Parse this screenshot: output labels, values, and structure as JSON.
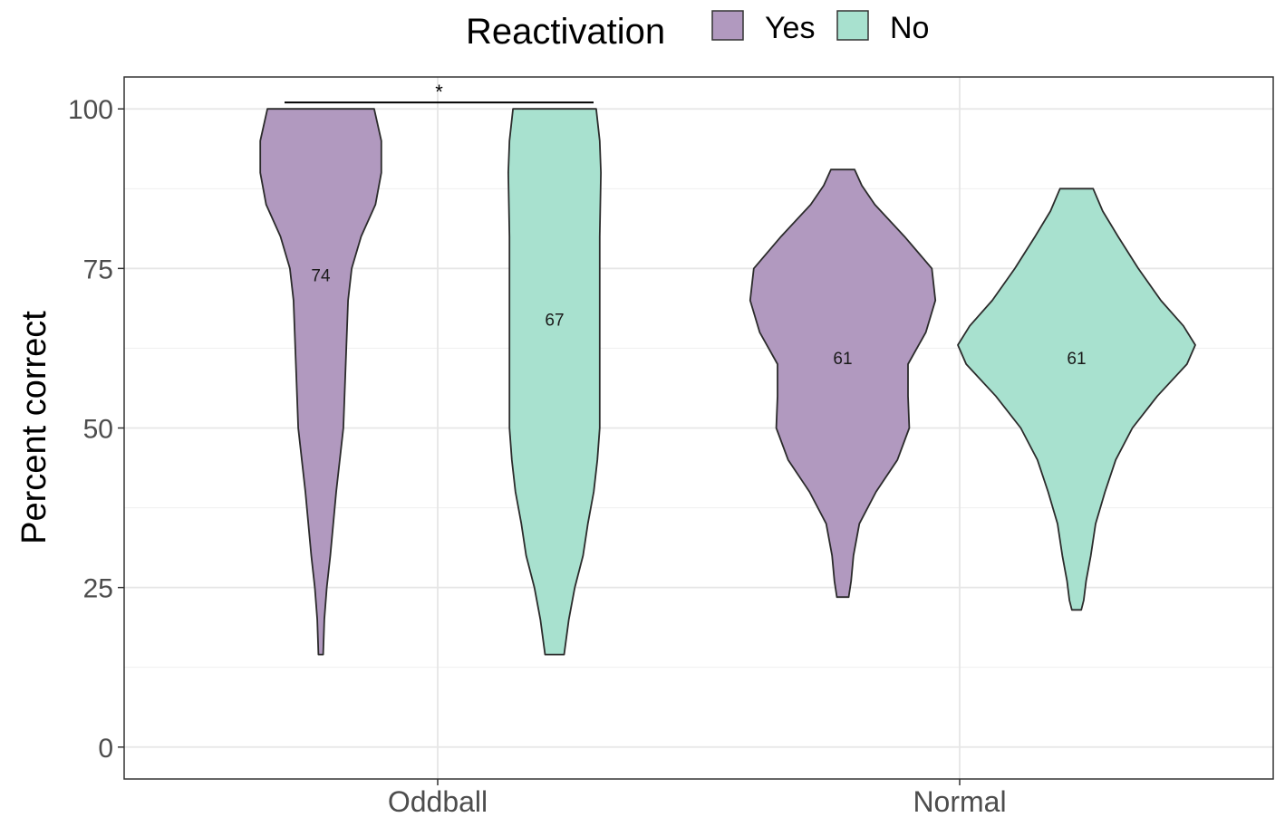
{
  "chart_data": {
    "type": "violin",
    "title": "",
    "xlabel": "",
    "ylabel": "Percent correct",
    "ylim": [
      -5,
      105
    ],
    "y_ticks": [
      0,
      25,
      50,
      75,
      100
    ],
    "categories": [
      "Oddball",
      "Normal"
    ],
    "legend": {
      "title": "Reactivation",
      "position": "top",
      "entries": [
        {
          "name": "Yes",
          "color": "#b199bf"
        },
        {
          "name": "No",
          "color": "#a8e1cf"
        }
      ]
    },
    "series": [
      {
        "name": "Yes",
        "groups": [
          {
            "category": "Oddball",
            "mean": 74,
            "mean_label": "74",
            "min": 14.5,
            "max": 100,
            "density": [
              [
                14.5,
                0.02
              ],
              [
                20,
                0.03
              ],
              [
                25,
                0.05
              ],
              [
                30,
                0.08
              ],
              [
                40,
                0.13
              ],
              [
                50,
                0.19
              ],
              [
                60,
                0.21
              ],
              [
                70,
                0.23
              ],
              [
                75,
                0.26
              ],
              [
                80,
                0.34
              ],
              [
                85,
                0.46
              ],
              [
                90,
                0.51
              ],
              [
                95,
                0.51
              ],
              [
                100,
                0.45
              ]
            ]
          },
          {
            "category": "Normal",
            "mean": 61,
            "mean_label": "61",
            "min": 23.5,
            "max": 90.5,
            "density": [
              [
                23.5,
                0.05
              ],
              [
                26,
                0.07
              ],
              [
                30,
                0.09
              ],
              [
                35,
                0.14
              ],
              [
                40,
                0.28
              ],
              [
                45,
                0.46
              ],
              [
                50,
                0.56
              ],
              [
                55,
                0.55
              ],
              [
                60,
                0.55
              ],
              [
                65,
                0.7
              ],
              [
                70,
                0.78
              ],
              [
                75,
                0.75
              ],
              [
                80,
                0.52
              ],
              [
                85,
                0.27
              ],
              [
                88,
                0.16
              ],
              [
                90.5,
                0.1
              ]
            ]
          }
        ]
      },
      {
        "name": "No",
        "groups": [
          {
            "category": "Oddball",
            "mean": 67,
            "mean_label": "67",
            "min": 14.5,
            "max": 100,
            "density": [
              [
                14.5,
                0.08
              ],
              [
                20,
                0.12
              ],
              [
                25,
                0.17
              ],
              [
                30,
                0.24
              ],
              [
                35,
                0.28
              ],
              [
                40,
                0.33
              ],
              [
                45,
                0.36
              ],
              [
                50,
                0.38
              ],
              [
                55,
                0.38
              ],
              [
                60,
                0.38
              ],
              [
                70,
                0.38
              ],
              [
                80,
                0.38
              ],
              [
                90,
                0.39
              ],
              [
                95,
                0.38
              ],
              [
                100,
                0.35
              ]
            ]
          },
          {
            "category": "Normal",
            "mean": 61,
            "mean_label": "61",
            "min": 21.5,
            "max": 87.5,
            "density": [
              [
                21.5,
                0.04
              ],
              [
                23,
                0.06
              ],
              [
                26,
                0.08
              ],
              [
                30,
                0.12
              ],
              [
                35,
                0.16
              ],
              [
                40,
                0.24
              ],
              [
                45,
                0.33
              ],
              [
                50,
                0.47
              ],
              [
                55,
                0.68
              ],
              [
                60,
                0.93
              ],
              [
                63,
                1.0
              ],
              [
                66,
                0.9
              ],
              [
                70,
                0.71
              ],
              [
                75,
                0.52
              ],
              [
                80,
                0.35
              ],
              [
                84,
                0.22
              ],
              [
                87.5,
                0.14
              ]
            ]
          }
        ]
      }
    ],
    "significance": [
      {
        "from": "Oddball-Yes",
        "to": "Oddball-No",
        "y": 101,
        "label": "*"
      }
    ]
  }
}
